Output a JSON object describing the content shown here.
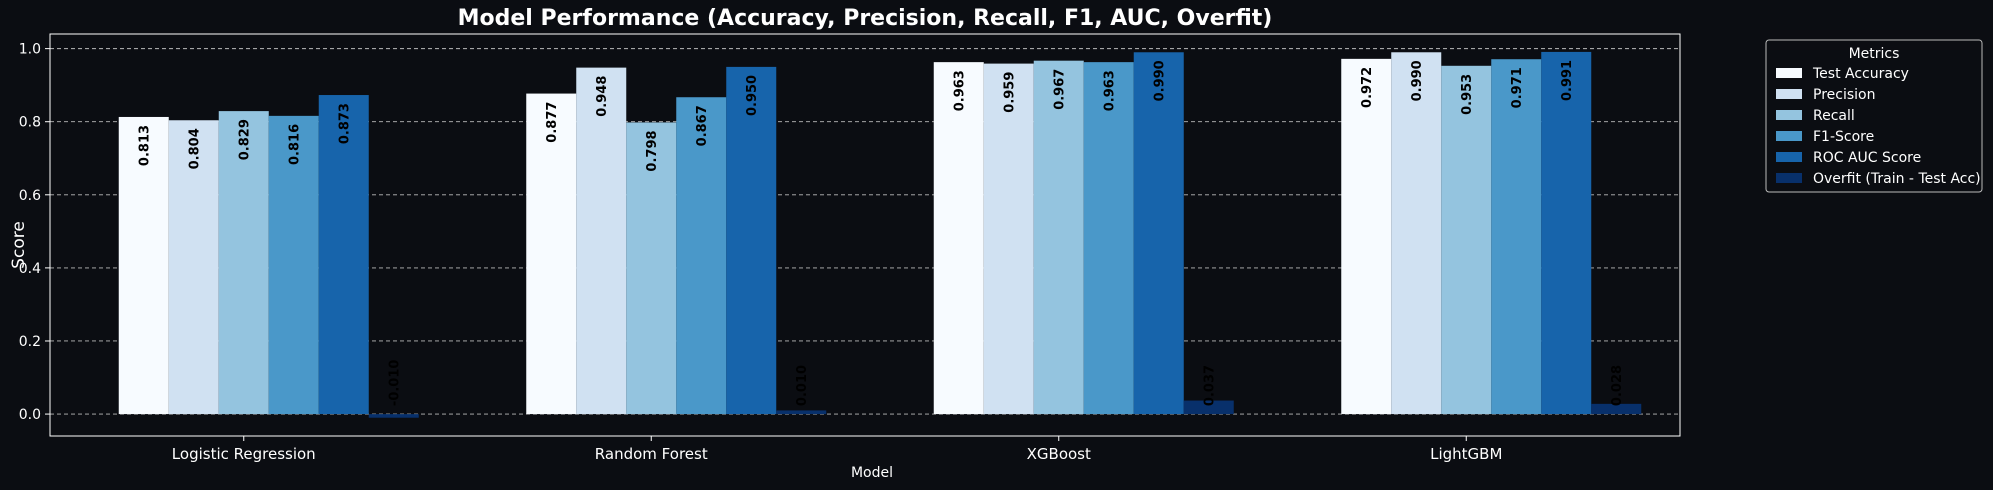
{
  "chart_data": {
    "type": "bar",
    "title": "Model Performance (Accuracy, Precision, Recall, F1, AUC, Overfit)",
    "xlabel": "Model",
    "ylabel": "Score",
    "ylim": [
      -0.06,
      1.04
    ],
    "yticks": [
      0.0,
      0.2,
      0.4,
      0.6,
      0.8,
      1.0
    ],
    "ytick_labels": [
      "0.0",
      "0.2",
      "0.4",
      "0.6",
      "0.8",
      "1.0"
    ],
    "grid": true,
    "legend_title": "Metrics",
    "legend_position": "outside top-right",
    "categories": [
      "Logistic Regression",
      "Random Forest",
      "XGBoost",
      "LightGBM"
    ],
    "series": [
      {
        "name": "Test Accuracy",
        "color": "#f7fbff",
        "values": [
          0.813,
          0.877,
          0.963,
          0.972
        ],
        "labels": [
          "0.813",
          "0.877",
          "0.963",
          "0.972"
        ]
      },
      {
        "name": "Precision",
        "color": "#d0e1f2",
        "values": [
          0.804,
          0.948,
          0.959,
          0.99
        ],
        "labels": [
          "0.804",
          "0.948",
          "0.959",
          "0.990"
        ]
      },
      {
        "name": "Recall",
        "color": "#94c4df",
        "values": [
          0.829,
          0.798,
          0.967,
          0.953
        ],
        "labels": [
          "0.829",
          "0.798",
          "0.967",
          "0.953"
        ]
      },
      {
        "name": "F1-Score",
        "color": "#4a98c9",
        "values": [
          0.816,
          0.867,
          0.963,
          0.971
        ],
        "labels": [
          "0.816",
          "0.867",
          "0.963",
          "0.971"
        ]
      },
      {
        "name": "ROC AUC Score",
        "color": "#1764ab",
        "values": [
          0.873,
          0.95,
          0.99,
          0.991
        ],
        "labels": [
          "0.873",
          "0.950",
          "0.990",
          "0.991"
        ]
      },
      {
        "name": "Overfit (Train - Test Acc)",
        "color": "#08306b",
        "values": [
          -0.01,
          0.01,
          0.037,
          0.028
        ],
        "labels": [
          "-0.010",
          "0.010",
          "0.037",
          "0.028"
        ]
      }
    ]
  }
}
